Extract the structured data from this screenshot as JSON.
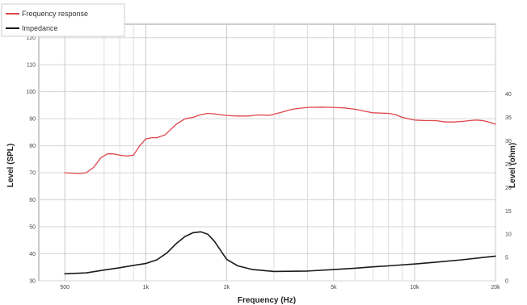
{
  "chart_data": {
    "type": "line",
    "xlabel": "Frequency (Hz)",
    "ylabel": "Level (SPL)",
    "y2label": "Level (ohm)",
    "x_scale": "log",
    "xlim": [
      400,
      20000
    ],
    "ylim": [
      30,
      125
    ],
    "y2lim": [
      0,
      55
    ],
    "grid": true,
    "legend_position": "top-left",
    "x_major_ticks": [
      {
        "value": 500,
        "label": "500"
      },
      {
        "value": 1000,
        "label": "1k"
      },
      {
        "value": 2000,
        "label": "2k"
      },
      {
        "value": 5000,
        "label": "5k"
      },
      {
        "value": 10000,
        "label": "10k"
      },
      {
        "value": 20000,
        "label": "20k"
      }
    ],
    "x_minor_ticks": [
      700,
      800,
      900,
      3000,
      4000,
      6000,
      7000,
      8000,
      9000
    ],
    "y_ticks": [
      30,
      40,
      50,
      60,
      70,
      80,
      90,
      100,
      110,
      120
    ],
    "y2_ticks": [
      0,
      5,
      10,
      15,
      20,
      25,
      30,
      35,
      40
    ],
    "series": [
      {
        "name": "Frequency response",
        "axis": "left",
        "color": "#e0454a",
        "points": [
          [
            500,
            70
          ],
          [
            560,
            69.7
          ],
          [
            600,
            70
          ],
          [
            640,
            72
          ],
          [
            680,
            75.5
          ],
          [
            720,
            77
          ],
          [
            760,
            77
          ],
          [
            800,
            76.5
          ],
          [
            850,
            76.2
          ],
          [
            900,
            76.5
          ],
          [
            950,
            80
          ],
          [
            1000,
            82.5
          ],
          [
            1050,
            83
          ],
          [
            1100,
            83
          ],
          [
            1180,
            84
          ],
          [
            1300,
            88
          ],
          [
            1400,
            90
          ],
          [
            1500,
            90.5
          ],
          [
            1600,
            91.5
          ],
          [
            1700,
            92
          ],
          [
            1800,
            91.8
          ],
          [
            2000,
            91.2
          ],
          [
            2200,
            91
          ],
          [
            2400,
            91
          ],
          [
            2600,
            91.4
          ],
          [
            2900,
            91.3
          ],
          [
            3200,
            92.4
          ],
          [
            3500,
            93.5
          ],
          [
            4000,
            94.2
          ],
          [
            4500,
            94.3
          ],
          [
            5000,
            94.2
          ],
          [
            5500,
            94
          ],
          [
            6000,
            93.5
          ],
          [
            6500,
            92.8
          ],
          [
            7000,
            92.2
          ],
          [
            8000,
            92
          ],
          [
            8500,
            91.5
          ],
          [
            9000,
            90.5
          ],
          [
            10000,
            89.5
          ],
          [
            11000,
            89.3
          ],
          [
            12000,
            89.3
          ],
          [
            13000,
            88.8
          ],
          [
            14000,
            88.8
          ],
          [
            15000,
            89
          ],
          [
            16000,
            89.3
          ],
          [
            17000,
            89.5
          ],
          [
            18000,
            89.3
          ],
          [
            19000,
            88.7
          ],
          [
            20000,
            88
          ]
        ]
      },
      {
        "name": "Impedance",
        "axis": "right",
        "color": "#1a1a1a",
        "points": [
          [
            500,
            1.5
          ],
          [
            600,
            1.7
          ],
          [
            700,
            2.3
          ],
          [
            800,
            2.8
          ],
          [
            900,
            3.3
          ],
          [
            1000,
            3.7
          ],
          [
            1100,
            4.5
          ],
          [
            1200,
            6
          ],
          [
            1300,
            8
          ],
          [
            1400,
            9.5
          ],
          [
            1500,
            10.3
          ],
          [
            1600,
            10.5
          ],
          [
            1700,
            10
          ],
          [
            1800,
            8.5
          ],
          [
            1900,
            6.5
          ],
          [
            2000,
            4.6
          ],
          [
            2200,
            3.2
          ],
          [
            2500,
            2.4
          ],
          [
            3000,
            2.0
          ],
          [
            4000,
            2.1
          ],
          [
            5000,
            2.4
          ],
          [
            6000,
            2.7
          ],
          [
            7000,
            3
          ],
          [
            8000,
            3.2
          ],
          [
            10000,
            3.6
          ],
          [
            12000,
            4
          ],
          [
            15000,
            4.5
          ],
          [
            18000,
            5
          ],
          [
            20000,
            5.3
          ]
        ]
      }
    ]
  }
}
